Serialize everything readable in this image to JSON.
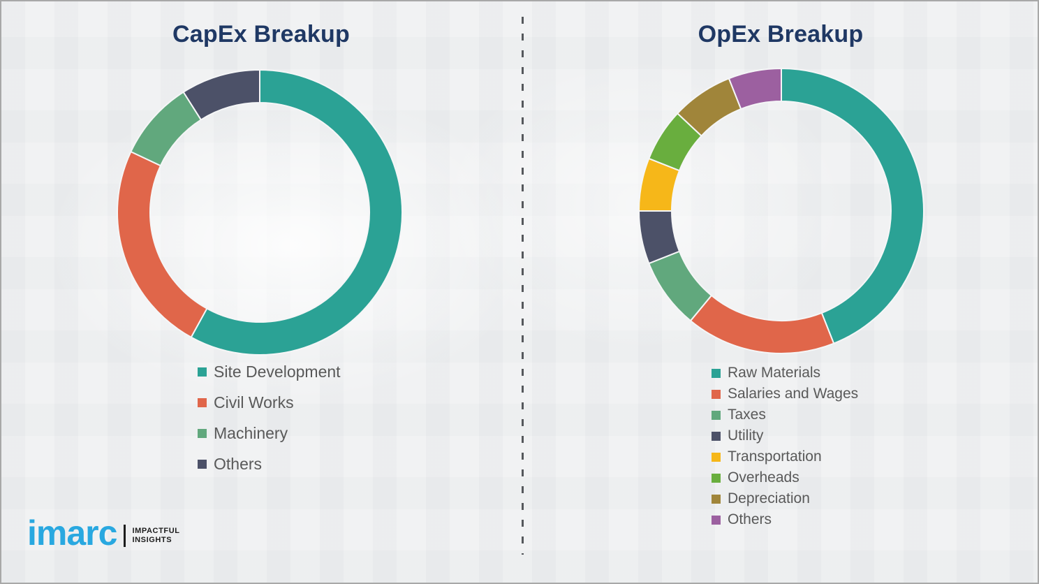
{
  "page": {
    "background_color": "#f1f2f3",
    "border_color": "#a8a8a8",
    "title_color": "#1f3864",
    "legend_text_color": "#595959",
    "divider": "vertical-dashed-line"
  },
  "logo": {
    "brand": "imarc",
    "brand_color": "#29a8e0",
    "tagline_line1": "IMPACTFUL",
    "tagline_line2": "INSIGHTS"
  },
  "chart_data": [
    {
      "type": "pie",
      "subtype": "donut",
      "title": "CapEx Breakup",
      "categories": [
        "Site Development",
        "Civil Works",
        "Machinery",
        "Others"
      ],
      "values": [
        58,
        24,
        9,
        9
      ],
      "values_note": "percent of ring, estimated from arc angles (no numeric labels shown)",
      "colors": [
        "#2ba295",
        "#e0664a",
        "#61a87d",
        "#4c5168"
      ],
      "start_angle_deg": 0,
      "direction": "clockwise",
      "legend_position": "below-left",
      "data_labels": false
    },
    {
      "type": "pie",
      "subtype": "donut",
      "title": "OpEx Breakup",
      "categories": [
        "Raw Materials",
        "Salaries and Wages",
        "Taxes",
        "Utility",
        "Transportation",
        "Overheads",
        "Depreciation",
        "Others"
      ],
      "values": [
        44,
        17,
        8,
        6,
        6,
        6,
        7,
        6
      ],
      "values_note": "percent of ring, estimated from arc angles (no numeric labels shown)",
      "colors": [
        "#2ba295",
        "#e0664a",
        "#61a87d",
        "#4c5168",
        "#f6b719",
        "#69ae3e",
        "#a0853a",
        "#9c60a0"
      ],
      "start_angle_deg": 0,
      "direction": "clockwise",
      "legend_position": "below-left",
      "data_labels": false
    }
  ]
}
